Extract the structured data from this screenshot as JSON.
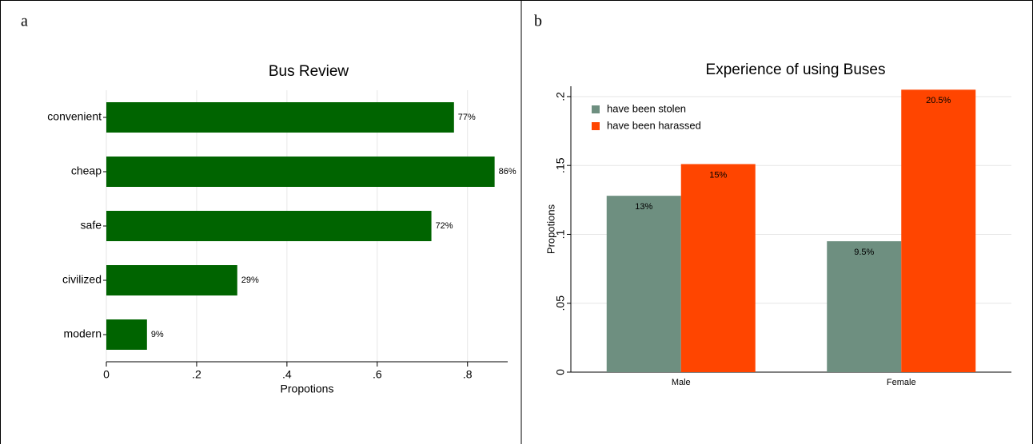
{
  "chart_data": [
    {
      "panel_label": "a",
      "type": "barh",
      "title": "Bus Review",
      "categories": [
        "convenient",
        "cheap",
        "safe",
        "civilized",
        "modern"
      ],
      "values": [
        0.77,
        0.86,
        0.72,
        0.29,
        0.09
      ],
      "value_labels": [
        "77%",
        "86%",
        "72%",
        "29%",
        "9%"
      ],
      "color": "#006400",
      "xlabel": "Propotions",
      "xlim": [
        0,
        0.889
      ],
      "xticks": [
        0,
        {
          "value": 0.2,
          "label": ".2"
        },
        {
          "value": 0.4,
          "label": ".4"
        },
        {
          "value": 0.6,
          "label": ".6"
        },
        {
          "value": 0.8,
          "label": ".8"
        }
      ],
      "grid": true
    },
    {
      "panel_label": "b",
      "type": "bar",
      "title": "Experience of using Buses",
      "categories": [
        "Male",
        "Female"
      ],
      "series": [
        {
          "name": "have been stolen",
          "color": "#6e8f80",
          "values": [
            0.128,
            0.095
          ],
          "value_labels": [
            "13%",
            "9.5%"
          ]
        },
        {
          "name": "have been harassed",
          "color": "#ff4500",
          "values": [
            0.151,
            0.205
          ],
          "value_labels": [
            "15%",
            "20.5%"
          ]
        }
      ],
      "ylabel": "Propotions",
      "ylim": [
        0,
        0.2075
      ],
      "yticks": [
        0,
        {
          "value": 0.05,
          "label": ".05"
        },
        {
          "value": 0.1,
          "label": ".1"
        },
        {
          "value": 0.15,
          "label": ".15"
        },
        {
          "value": 0.2,
          "label": ".2"
        }
      ],
      "grid": true,
      "legend": "top-left"
    }
  ]
}
